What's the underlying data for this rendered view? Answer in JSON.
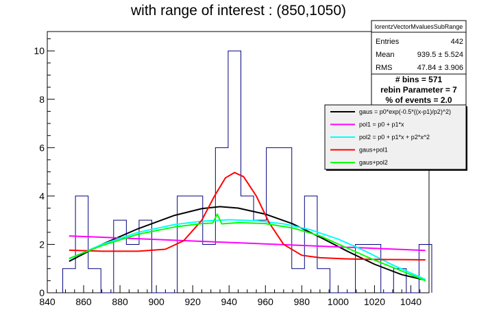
{
  "chart_data": {
    "type": "bar",
    "title": "with range of interest : (850,1050)",
    "xlim": [
      840,
      1050
    ],
    "ylim": [
      0,
      10.8
    ],
    "x_ticks": [
      840,
      860,
      880,
      900,
      920,
      940,
      960,
      980,
      1000,
      1020,
      1040
    ],
    "y_ticks": [
      0,
      2,
      4,
      6,
      8,
      10
    ],
    "grid": false,
    "histogram": {
      "name": "lorentzVectorMvaluesSubRange",
      "line_color": "#000080",
      "bin_edges": [
        848.5,
        855.5,
        862.5,
        869.5,
        876.5,
        883.5,
        890.5,
        897.5,
        904.5,
        911.5,
        918.5,
        925.5,
        932.5,
        939.5,
        946.5,
        953.5,
        960.5,
        967.5,
        974.5,
        981.5,
        988.5,
        995.5,
        1002.5,
        1009.5,
        1016.5,
        1023.5,
        1030.5,
        1037.5,
        1044.5,
        1051.5
      ],
      "counts": [
        1,
        4,
        1,
        0,
        3,
        2,
        3,
        0,
        0,
        4,
        4,
        2,
        6,
        10,
        4,
        3,
        6,
        6,
        1,
        4,
        1,
        0,
        0,
        2,
        2,
        0,
        1,
        0,
        2
      ]
    },
    "fits": [
      {
        "name": "gaus = p0*exp(-0.5*((x-p1)/p2)^2)",
        "color": "#000000",
        "x": [
          852,
          870,
          890,
          910,
          925,
          935,
          945,
          960,
          975,
          990,
          1005,
          1020,
          1035,
          1048
        ],
        "y": [
          1.3,
          2.0,
          2.65,
          3.2,
          3.48,
          3.56,
          3.5,
          3.25,
          2.85,
          2.3,
          1.72,
          1.18,
          0.75,
          0.52
        ]
      },
      {
        "name": "pol1 = p0 + p1*x",
        "color": "#ff00ff",
        "x": [
          852,
          1048
        ],
        "y": [
          2.35,
          1.75
        ]
      },
      {
        "name": "pol2 = p0 + p1*x + p2*x^2",
        "color": "#00ffff",
        "x": [
          852,
          870,
          890,
          910,
          925,
          940,
          955,
          970,
          985,
          1000,
          1015,
          1030,
          1048
        ],
        "y": [
          1.4,
          2.0,
          2.5,
          2.82,
          2.96,
          3.02,
          2.98,
          2.85,
          2.6,
          2.22,
          1.72,
          1.15,
          0.55
        ]
      },
      {
        "name": "gaus+pol1",
        "color": "#ff0000",
        "x": [
          852,
          870,
          890,
          905,
          915,
          925,
          932,
          938,
          943,
          948,
          955,
          962,
          970,
          980,
          990,
          1005,
          1020,
          1035,
          1048
        ],
        "y": [
          1.76,
          1.72,
          1.72,
          1.8,
          2.15,
          3.0,
          4.0,
          4.75,
          4.97,
          4.8,
          4.0,
          2.9,
          2.0,
          1.55,
          1.45,
          1.4,
          1.38,
          1.37,
          1.36
        ]
      },
      {
        "name": "gaus+pol2",
        "color": "#00ff00",
        "x": [
          852,
          870,
          890,
          910,
          925,
          931,
          933.5,
          936,
          945,
          960,
          975,
          990,
          1005,
          1020,
          1035,
          1048
        ],
        "y": [
          1.42,
          1.95,
          2.42,
          2.72,
          2.86,
          2.88,
          3.25,
          2.85,
          2.9,
          2.86,
          2.68,
          2.35,
          1.85,
          1.35,
          0.9,
          0.5
        ]
      }
    ],
    "legend_placement": "right",
    "legend_entries": [
      "gaus = p0*exp(-0.5*((x-p1)/p2)^2)",
      "pol1 = p0 + p1*x",
      "pol2 = p0 + p1*x + p2*x^2",
      "gaus+pol1",
      "gaus+pol2"
    ],
    "stats_box": {
      "name": "lorentzVectorMvaluesSubRange",
      "rows": [
        {
          "label": "Entries",
          "value": "442"
        },
        {
          "label": "Mean",
          "value": "939.5 ±  5.524"
        },
        {
          "label": "RMS",
          "value": "47.84 ±  3.906"
        }
      ]
    },
    "info_box": [
      "# bins = 571",
      "rebin Parameter = 7",
      "% of events = 2.0"
    ]
  }
}
